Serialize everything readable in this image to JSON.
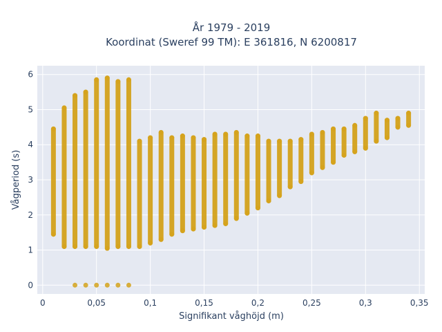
{
  "chart_data": {
    "type": "scatter",
    "title_line1": "År 1979 - 2019",
    "title_line2": "Koordinat (Sweref 99 TM): E 361816, N 6200817",
    "xlabel": "Signifikant våghöjd (m)",
    "ylabel": "Vågperiod (s)",
    "xlim": [
      -0.005,
      0.355
    ],
    "ylim": [
      -0.25,
      6.25
    ],
    "grid": true,
    "xticks": [
      {
        "v": 0,
        "label": "0"
      },
      {
        "v": 0.05,
        "label": "0,05"
      },
      {
        "v": 0.1,
        "label": "0,1"
      },
      {
        "v": 0.15,
        "label": "0,15"
      },
      {
        "v": 0.2,
        "label": "0,2"
      },
      {
        "v": 0.25,
        "label": "0,25"
      },
      {
        "v": 0.3,
        "label": "0,3"
      },
      {
        "v": 0.35,
        "label": "0,35"
      }
    ],
    "yticks": [
      {
        "v": 0,
        "label": "0"
      },
      {
        "v": 1,
        "label": "1"
      },
      {
        "v": 2,
        "label": "2"
      },
      {
        "v": 3,
        "label": "3"
      },
      {
        "v": 4,
        "label": "4"
      },
      {
        "v": 5,
        "label": "5"
      },
      {
        "v": 6,
        "label": "6"
      }
    ],
    "marker_color": "#D4A21C",
    "plot_bg": "#e5e9f2",
    "series": [
      {
        "x": [
          0.01,
          0.02,
          0.03,
          0.04,
          0.05,
          0.06,
          0.07,
          0.08,
          0.09,
          0.1,
          0.11,
          0.12,
          0.13,
          0.14,
          0.15,
          0.16,
          0.17,
          0.18,
          0.19,
          0.2,
          0.21,
          0.22,
          0.23,
          0.24,
          0.25,
          0.26,
          0.27,
          0.28,
          0.29,
          0.3,
          0.31,
          0.32,
          0.33,
          0.34
        ],
        "y_min": [
          1.45,
          1.1,
          1.1,
          1.1,
          1.1,
          1.05,
          1.1,
          1.1,
          1.1,
          1.2,
          1.3,
          1.45,
          1.55,
          1.6,
          1.65,
          1.7,
          1.75,
          1.9,
          2.05,
          2.2,
          2.4,
          2.55,
          2.8,
          2.95,
          3.2,
          3.35,
          3.5,
          3.7,
          3.8,
          3.9,
          4.1,
          4.2,
          4.5,
          4.55
        ],
        "y_max": [
          4.45,
          5.05,
          5.4,
          5.5,
          5.85,
          5.9,
          5.8,
          5.85,
          4.1,
          4.2,
          4.35,
          4.2,
          4.25,
          4.2,
          4.15,
          4.3,
          4.3,
          4.35,
          4.25,
          4.25,
          4.1,
          4.1,
          4.1,
          4.15,
          4.3,
          4.35,
          4.45,
          4.45,
          4.55,
          4.75,
          4.9,
          4.7,
          4.75,
          4.9
        ]
      }
    ]
  }
}
